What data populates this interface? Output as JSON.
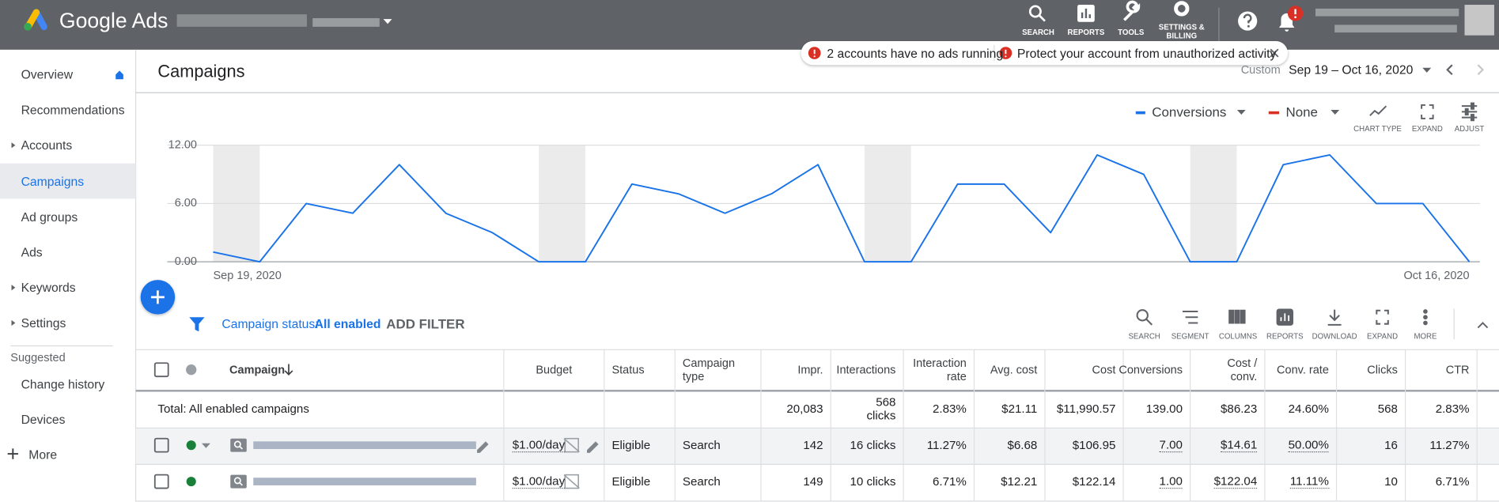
{
  "header": {
    "product": "Google Ads",
    "nav": [
      "SEARCH",
      "REPORTS",
      "TOOLS",
      "SETTINGS & BILLING"
    ]
  },
  "notifications": [
    "2 accounts have no ads running",
    "Protect your account from unauthorized activity"
  ],
  "sidebar": {
    "items": [
      "Overview",
      "Recommendations",
      "Accounts",
      "Campaigns",
      "Ad groups",
      "Ads",
      "Keywords",
      "Settings"
    ],
    "suggested_label": "Suggested",
    "suggested": [
      "Change history",
      "Devices"
    ],
    "more": "More"
  },
  "page": {
    "title": "Campaigns",
    "date_range_label": "Custom",
    "date_range": "Sep 19 – Oct 16, 2020"
  },
  "chart_controls": {
    "secondary": "None",
    "tools": [
      "CHART TYPE",
      "EXPAND",
      "ADJUST"
    ]
  },
  "chart_data": {
    "type": "line",
    "categories": [
      "Sep 19, 2020",
      null,
      null,
      null,
      null,
      null,
      null,
      null,
      null,
      null,
      null,
      null,
      null,
      null,
      null,
      null,
      null,
      null,
      null,
      null,
      null,
      null,
      null,
      null,
      null,
      null,
      null,
      "Oct 16, 2020"
    ],
    "series": [
      {
        "name": "Conversions",
        "color": "#1a73e8",
        "values": [
          1,
          0,
          6,
          5,
          10,
          5,
          3,
          0,
          0,
          8,
          7,
          5,
          7,
          10,
          0,
          0,
          8,
          8,
          3,
          11,
          9,
          0,
          0,
          10,
          11,
          6,
          6,
          0
        ]
      }
    ],
    "ylim": [
      0,
      12
    ],
    "yticks": [
      {
        "value": 0,
        "label": "0.00"
      },
      {
        "value": 6,
        "label": "6.00"
      },
      {
        "value": 12,
        "label": "12.00"
      }
    ],
    "grid": true
  },
  "filter": {
    "label": "Campaign status:",
    "value": "All enabled",
    "add": "ADD FILTER",
    "tools": [
      "SEARCH",
      "SEGMENT",
      "COLUMNS",
      "REPORTS",
      "DOWNLOAD",
      "EXPAND",
      "MORE"
    ]
  },
  "table": {
    "columns": [
      "Campaign",
      "Budget",
      "Status",
      "Campaign type",
      "Impr.",
      "Interactions",
      "Interaction rate",
      "Avg. cost",
      "Cost",
      "Conversions",
      "Cost / conv.",
      "Conv. rate",
      "Clicks",
      "CTR"
    ],
    "total": {
      "label": "Total: All enabled campaigns",
      "metrics": [
        "20,083",
        "568 clicks",
        "2.83%",
        "$21.11",
        "$11,990.57",
        "139.00",
        "$86.23",
        "24.60%",
        "568",
        "2.83%"
      ]
    },
    "rows": [
      {
        "budget": "$1.00/day",
        "status": "Eligible",
        "type": "Search",
        "metrics": [
          "142",
          "16 clicks",
          "11.27%",
          "$6.68",
          "$106.95",
          "7.00",
          "$14.61",
          "50.00%",
          "16",
          "11.27%"
        ]
      },
      {
        "budget": "$1.00/day",
        "status": "Eligible",
        "type": "Search",
        "metrics": [
          "149",
          "10 clicks",
          "6.71%",
          "$12.21",
          "$122.14",
          "1.00",
          "$122.04",
          "11.11%",
          "10",
          "6.71%"
        ]
      }
    ]
  }
}
